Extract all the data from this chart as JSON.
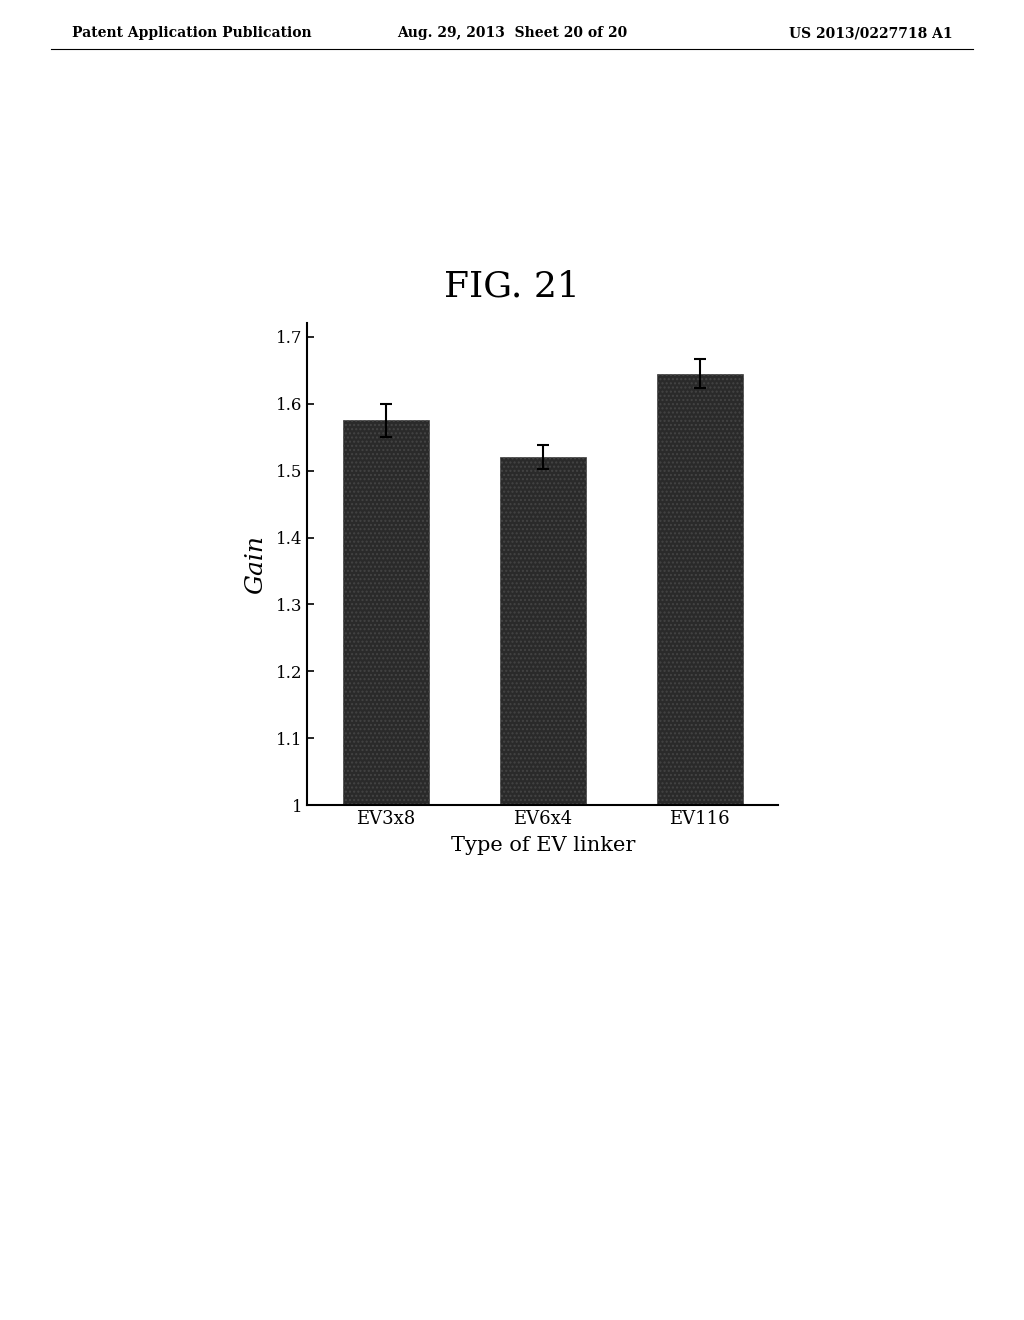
{
  "title": "FIG. 21",
  "categories": [
    "EV3x8",
    "EV6x4",
    "EV116"
  ],
  "values": [
    1.575,
    1.52,
    1.645
  ],
  "errors": [
    0.025,
    0.018,
    0.022
  ],
  "bar_color": "#1a1a1a",
  "ylabel": "Gain",
  "xlabel": "Type of EV linker",
  "ylim": [
    1.0,
    1.72
  ],
  "yticks": [
    1.0,
    1.1,
    1.2,
    1.3,
    1.4,
    1.5,
    1.6,
    1.7
  ],
  "title_fontsize": 26,
  "label_fontsize": 15,
  "tick_fontsize": 12,
  "header_left": "Patent Application Publication",
  "header_center": "Aug. 29, 2013  Sheet 20 of 20",
  "header_right": "US 2013/0227718 A1",
  "header_fontsize": 10,
  "background_color": "#ffffff"
}
